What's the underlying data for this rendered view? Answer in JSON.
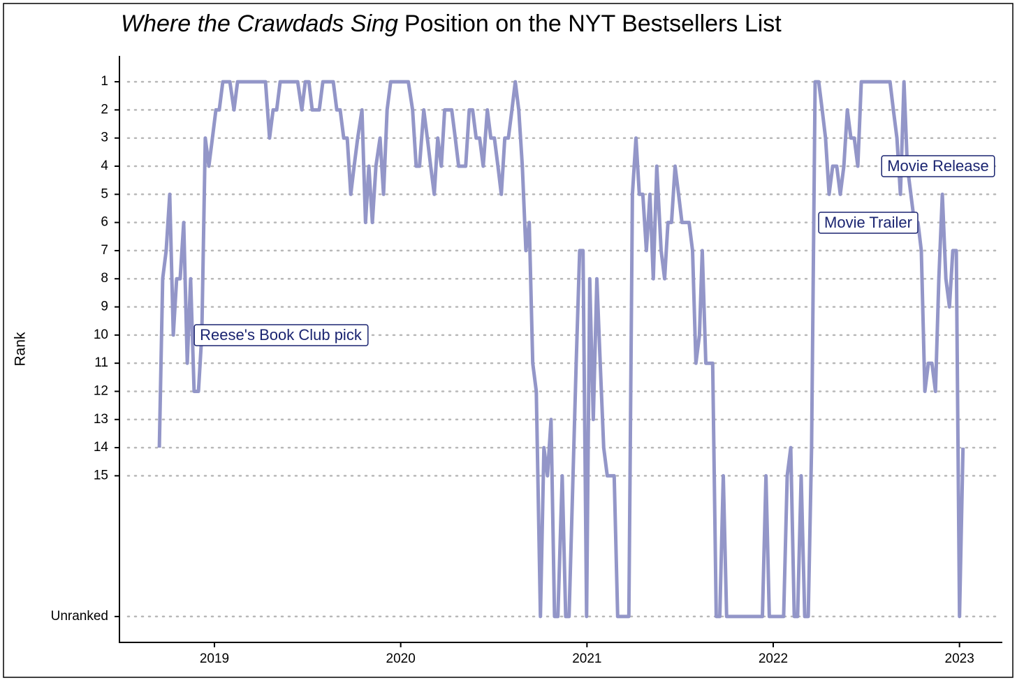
{
  "chart_data": {
    "type": "line",
    "title_italic": "Where the Crawdads Sing",
    "title": "Position on the NYT Bestsellers List",
    "y_label": "Rank",
    "color": "#9396c8",
    "xlim": [
      2018.49,
      2023.23
    ],
    "xticks": [
      2019,
      2020,
      2021,
      2022,
      2023
    ],
    "ylim": [
      0.08,
      20.92
    ],
    "y_reversed": true,
    "yticks": [
      1,
      2,
      3,
      4,
      5,
      6,
      7,
      8,
      9,
      10,
      11,
      12,
      13,
      14,
      15,
      {
        "value": 20,
        "label": "Unranked"
      }
    ],
    "grid": true,
    "annotations": [
      "Reese's Book Club pick",
      "Movie Trailer",
      "Movie Release"
    ],
    "x": [
      2018.704,
      2018.722,
      2018.741,
      2018.76,
      2018.779,
      2018.797,
      2018.816,
      2018.835,
      2018.854,
      2018.872,
      2018.891,
      2018.914,
      2018.932,
      2018.951,
      2018.97,
      2018.989,
      2019.008,
      2019.026,
      2019.045,
      2019.083,
      2019.105,
      2019.124,
      2019.274,
      2019.296,
      2019.315,
      2019.334,
      2019.353,
      2019.447,
      2019.469,
      2019.488,
      2019.507,
      2019.525,
      2019.563,
      2019.582,
      2019.638,
      2019.657,
      2019.675,
      2019.694,
      2019.713,
      2019.732,
      2019.75,
      2019.769,
      2019.792,
      2019.811,
      2019.829,
      2019.848,
      2019.867,
      2019.889,
      2019.908,
      2019.927,
      2019.946,
      2020.041,
      2020.064,
      2020.083,
      2020.101,
      2020.124,
      2020.143,
      2020.161,
      2020.18,
      2020.199,
      2020.218,
      2020.236,
      2020.274,
      2020.293,
      2020.311,
      2020.349,
      2020.368,
      2020.386,
      2020.405,
      2020.424,
      2020.443,
      2020.465,
      2020.484,
      2020.503,
      2020.522,
      2020.54,
      2020.559,
      2020.578,
      2020.597,
      2020.615,
      2020.634,
      2020.653,
      2020.672,
      2020.69,
      2020.709,
      2020.728,
      2020.75,
      2020.769,
      2020.788,
      2020.807,
      2020.826,
      2020.844,
      2020.867,
      2020.886,
      2020.904,
      2020.942,
      2020.961,
      2020.979,
      2020.998,
      2021.015,
      2021.034,
      2021.053,
      2021.071,
      2021.09,
      2021.109,
      2021.146,
      2021.165,
      2021.225,
      2021.244,
      2021.263,
      2021.281,
      2021.3,
      2021.319,
      2021.338,
      2021.356,
      2021.375,
      2021.398,
      2021.417,
      2021.435,
      2021.454,
      2021.473,
      2021.492,
      2021.51,
      2021.529,
      2021.548,
      2021.567,
      2021.585,
      2021.604,
      2021.619,
      2021.638,
      2021.675,
      2021.694,
      2021.713,
      2021.732,
      2021.75,
      2021.942,
      2021.961,
      2021.979,
      2022.056,
      2022.075,
      2022.094,
      2022.113,
      2022.131,
      2022.15,
      2022.169,
      2022.188,
      2022.206,
      2022.225,
      2022.244,
      2022.263,
      2022.281,
      2022.3,
      2022.319,
      2022.341,
      2022.36,
      2022.379,
      2022.398,
      2022.417,
      2022.435,
      2022.454,
      2022.473,
      2022.627,
      2022.645,
      2022.664,
      2022.683,
      2022.702,
      2022.72,
      2022.758,
      2022.777,
      2022.795,
      2022.814,
      2022.833,
      2022.852,
      2022.871,
      2022.889,
      2022.908,
      2022.927,
      2022.946,
      2022.964,
      2022.983,
      2023.0,
      2023.019
    ],
    "values": [
      14,
      8,
      7,
      5,
      10,
      8,
      8,
      6,
      11,
      8,
      12,
      12,
      10,
      3,
      4,
      3,
      2,
      2,
      1,
      1,
      2,
      1,
      1,
      3,
      2,
      2,
      1,
      1,
      2,
      1,
      1,
      2,
      2,
      1,
      1,
      2,
      2,
      3,
      3,
      5,
      4,
      3,
      2,
      6,
      4,
      6,
      4,
      3,
      5,
      2,
      1,
      1,
      2,
      4,
      4,
      2,
      3,
      4,
      5,
      3,
      4,
      2,
      2,
      3,
      4,
      4,
      2,
      2,
      3,
      3,
      4,
      2,
      3,
      3,
      4,
      5,
      3,
      3,
      2,
      1,
      2,
      4,
      7,
      6,
      11,
      12,
      20,
      14,
      15,
      13,
      20,
      20,
      15,
      20,
      20,
      11,
      7,
      7,
      20,
      8,
      13,
      8,
      11,
      14,
      15,
      15,
      20,
      20,
      5,
      3,
      5,
      5,
      7,
      5,
      8,
      4,
      7,
      8,
      6,
      6,
      4,
      5,
      6,
      6,
      6,
      7,
      11,
      10,
      7,
      11,
      11,
      20,
      20,
      15,
      20,
      20,
      15,
      20,
      20,
      15,
      14,
      20,
      20,
      15,
      20,
      20,
      14,
      1,
      1,
      2,
      3,
      5,
      4,
      4,
      5,
      4,
      2,
      3,
      3,
      4,
      1,
      1,
      2,
      3,
      5,
      1,
      4,
      6,
      6,
      7,
      12,
      11,
      11,
      12,
      8,
      5,
      8,
      9,
      7,
      7,
      20,
      14
    ]
  }
}
